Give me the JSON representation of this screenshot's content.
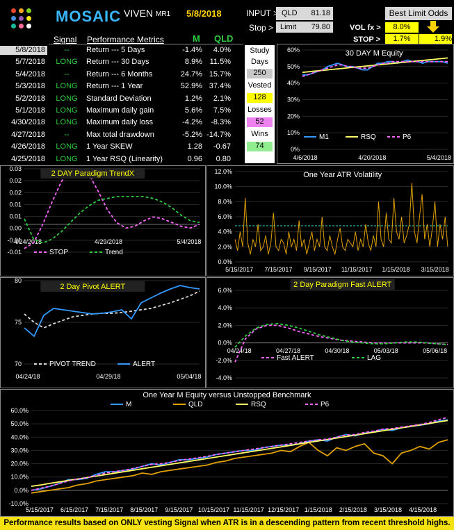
{
  "header": {
    "logo_text": "MOSAIC",
    "product": "VIVEN",
    "product_sup": "MR1",
    "date": "5/8/2018",
    "input_label": "INPUT >",
    "input_symbol": "QLD",
    "input_price": "81.18",
    "stop_label": "Stop >",
    "limit_label": "Limit",
    "limit_value": "79.80",
    "best_limit_label": "Best Limit Odds",
    "volfx_label": "VOL fx >",
    "volfx_value": "8.0%",
    "stop2_label": "STOP >",
    "stop2_value": "1.7%",
    "stop2_pct": "1.9%"
  },
  "table": {
    "col_signal": "Signal",
    "col_metrics": "Performance Metrics",
    "col_m": "M",
    "col_qld": "QLD",
    "rows": [
      {
        "date": "5/8/2018",
        "signal": "--",
        "metric": "Return --- 5 Days",
        "m": "-1.4%",
        "qld": "4.0%"
      },
      {
        "date": "5/7/2018",
        "signal": "LONG",
        "metric": "Return --- 30 Days",
        "m": "8.9%",
        "qld": "11.5%"
      },
      {
        "date": "5/4/2018",
        "signal": "--",
        "metric": "Return --- 6 Months",
        "m": "24.7%",
        "qld": "15.7%"
      },
      {
        "date": "5/3/2018",
        "signal": "LONG",
        "metric": "Return --- 1 Year",
        "m": "52.9%",
        "qld": "37.4%"
      },
      {
        "date": "5/2/2018",
        "signal": "LONG",
        "metric": "Standard Deviation",
        "m": "1.2%",
        "qld": "2.1%"
      },
      {
        "date": "5/1/2018",
        "signal": "LONG",
        "metric": "Maximum daily gain",
        "m": "5.6%",
        "qld": "7.5%"
      },
      {
        "date": "4/30/2018",
        "signal": "LONG",
        "metric": "Maximum daily loss",
        "m": "-4.2%",
        "qld": "-8.3%"
      },
      {
        "date": "4/27/2018",
        "signal": "--",
        "metric": "Max total drawdown",
        "m": "-5.2%",
        "qld": "-14.7%"
      },
      {
        "date": "4/26/2018",
        "signal": "LONG",
        "metric": "1 Year SKEW",
        "m": "1.28",
        "qld": "-0.67"
      },
      {
        "date": "4/25/2018",
        "signal": "LONG",
        "metric": "1 Year RSQ  (Linearity)",
        "m": "0.96",
        "qld": "0.80"
      }
    ]
  },
  "study": {
    "study_label": "Study",
    "days_label": "Days",
    "days_value": "250",
    "vested_label": "Vested",
    "vested_value": "128",
    "losses_label": "Losses",
    "losses_value": "52",
    "wins_label": "Wins",
    "wins_value": "74"
  },
  "footer": {
    "text": "Performance results based on ONLY vesting Signal when ATR is in a descending pattern from recent threshold highs."
  },
  "colors": {
    "green": "#2ecc40",
    "yellow": "#ffff00",
    "pink": "#ff66ff",
    "blue": "#3399ff",
    "orange": "#e0a000",
    "lightgreen": "#90ee90"
  },
  "chart_data": [
    {
      "id": "equity30",
      "type": "line",
      "title": "30 DAY  M   Equity",
      "x_ticks": [
        "4/6/2018",
        "4/20/2018",
        "5/4/2018"
      ],
      "y_ticks": [
        "0%",
        "10%",
        "20%",
        "30%",
        "40%",
        "50%",
        "60%"
      ],
      "ylim": [
        0,
        60
      ],
      "series": [
        {
          "name": "M1",
          "color": "#3399ff",
          "values": [
            45,
            45,
            46,
            47,
            48,
            50,
            51,
            52,
            51,
            50,
            50,
            49,
            48,
            48,
            50,
            52,
            52,
            53,
            53,
            52,
            53,
            54,
            53,
            53,
            52,
            53,
            53,
            53,
            53,
            52
          ]
        },
        {
          "name": "RSQ",
          "color": "#ffff66",
          "values": [
            46.5,
            46.8,
            47.1,
            47.4,
            47.7,
            48.0,
            48.3,
            48.6,
            48.9,
            49.2,
            49.5,
            49.8,
            50.1,
            50.4,
            50.7,
            51.0,
            51.3,
            51.6,
            51.9,
            52.2,
            52.5,
            52.8,
            53.1,
            53.4,
            53.7,
            54.0,
            54.3,
            54.6,
            54.9,
            55.2
          ]
        },
        {
          "name": "P6",
          "color": "#ff66ff",
          "values": [
            44,
            45,
            46,
            47,
            48,
            49,
            50,
            51,
            51,
            50,
            50,
            49,
            49,
            49,
            50,
            51,
            52,
            52,
            53,
            53,
            53,
            53,
            53,
            53,
            53,
            53,
            53,
            53,
            53,
            53
          ]
        }
      ]
    },
    {
      "id": "trendx",
      "type": "line",
      "title": "2  DAY  Paradigm  TrendX",
      "x_ticks": [
        "4/24/2018",
        "4/29/2018",
        "5/4/2018"
      ],
      "y_ticks": [
        "-0.01",
        "-0.01",
        "0.00",
        "0.01",
        "0.01",
        "0.02",
        "0.02",
        "0.03"
      ],
      "ylim": [
        -0.015,
        0.03
      ],
      "series": [
        {
          "name": "STOP",
          "color": "#ff66ff",
          "values": [
            -0.013,
            -0.01,
            0.0,
            0.012,
            0.023,
            0.03,
            0.03,
            0.027,
            0.018,
            0.008,
            0.001,
            -0.002,
            -0.001,
            0.002,
            0.004,
            0.003,
            0.001,
            -0.001,
            -0.002,
            0.0
          ]
        },
        {
          "name": "Trend",
          "color": "#2ecc40",
          "values": [
            0.003,
            -0.008,
            -0.01,
            -0.008,
            -0.004,
            0.001,
            0.006,
            0.01,
            0.013,
            0.014,
            0.015,
            0.015,
            0.015,
            0.015,
            0.014,
            0.012,
            0.009,
            0.005,
            0.002,
            0.001
          ]
        }
      ]
    },
    {
      "id": "atr",
      "type": "line",
      "title": "One Year  ATR Volatility",
      "x_ticks": [
        "5/15/2017",
        "7/15/2017",
        "9/15/2017",
        "11/15/2017",
        "1/15/2018",
        "3/15/2018"
      ],
      "y_ticks": [
        "0.0%",
        "2.0%",
        "4.0%",
        "6.0%",
        "8.0%",
        "10.0%",
        "12.0%"
      ],
      "ylim": [
        0,
        12
      ],
      "threshold": 4.8,
      "series": [
        {
          "name": "ATR",
          "color": "#e0a000",
          "values": [
            3.0,
            1.5,
            4.0,
            2.0,
            8.5,
            2.5,
            1.0,
            3.0,
            2.0,
            5.0,
            1.5,
            2.0,
            3.5,
            1.0,
            2.5,
            6.5,
            2.0,
            1.5,
            3.0,
            2.5,
            1.0,
            4.0,
            2.0,
            3.0,
            1.5,
            5.5,
            2.0,
            3.0,
            1.0,
            2.5,
            4.0,
            1.5,
            3.0,
            2.0,
            6.0,
            2.0,
            1.5,
            3.5,
            2.0,
            1.0,
            3.0,
            4.5,
            2.0,
            1.5,
            3.0,
            2.5,
            2.0,
            4.0,
            1.5,
            3.0,
            2.0,
            5.0,
            2.5,
            1.5,
            3.5,
            2.0,
            8.0,
            3.0,
            2.0,
            6.5,
            3.0,
            2.5,
            8.5,
            4.0,
            3.0,
            6.0,
            2.5,
            3.5,
            5.0,
            10.5,
            4.0,
            2.5,
            6.0,
            9.0,
            3.0,
            5.0,
            2.0,
            4.5,
            8.0,
            2.0,
            5.0,
            3.0,
            6.0,
            2.0
          ]
        }
      ]
    },
    {
      "id": "pivot",
      "type": "line",
      "title": "2 Day Pivot  ALERT",
      "x_ticks": [
        "04/24/18",
        "04/29/18",
        "05/04/18"
      ],
      "y_ticks": [
        "70",
        "75",
        "80"
      ],
      "ylim": [
        70,
        82
      ],
      "series": [
        {
          "name": "PIVOT  TREND",
          "color": "#dddddd",
          "values": [
            77.2,
            76.0,
            75.2,
            75.8,
            76.3,
            76.8,
            77.0,
            77.2,
            77.3,
            77.3,
            77.4,
            77.6,
            77.8,
            78.0,
            78.4,
            78.8,
            79.3,
            79.8,
            80.5
          ]
        },
        {
          "name": "ALERT",
          "color": "#3399ff",
          "values": [
            75.2,
            74.0,
            77.0,
            78.0,
            77.8,
            77.6,
            77.4,
            77.2,
            77.3,
            77.5,
            77.8,
            76.5,
            78.8,
            79.5,
            80.2,
            80.8,
            81.3,
            81.0,
            80.8
          ]
        }
      ]
    },
    {
      "id": "fastalert",
      "type": "line",
      "title": "2 Day  Paradigm Fast  ALERT",
      "x_ticks": [
        "04/24/18",
        "04/27/18",
        "04/30/18",
        "05/03/18",
        "05/06/18"
      ],
      "y_ticks": [
        "-4.0%",
        "-2.0%",
        "0.0%",
        "2.0%",
        "4.0%",
        "6.0%"
      ],
      "ylim": [
        -4,
        6
      ],
      "series": [
        {
          "name": "Fast ALERT",
          "color": "#ff66ff",
          "values": [
            -2.2,
            0.5,
            1.6,
            2.0,
            2.0,
            1.7,
            1.3,
            1.0,
            0.7,
            0.5,
            0.3,
            0.2,
            0.1,
            0.0,
            0.0,
            0.0,
            0.0,
            0.0,
            0.0,
            -0.1,
            -0.2
          ]
        },
        {
          "name": "LAG",
          "color": "#2ecc40",
          "values": [
            -0.5,
            0.8,
            1.7,
            2.1,
            2.2,
            2.0,
            1.7,
            1.3,
            0.9,
            0.6,
            0.3,
            0.1,
            0.0,
            -0.1,
            -0.1,
            0.0,
            0.1,
            0.1,
            0.0,
            -0.1,
            -0.2
          ]
        }
      ]
    },
    {
      "id": "yearequity",
      "type": "line",
      "title": "One Year  M   Equity versus  Unstopped Benchmark",
      "x_ticks": [
        "5/15/2017",
        "6/15/2017",
        "7/15/2017",
        "8/15/2017",
        "9/15/2017",
        "10/15/2017",
        "11/15/2017",
        "12/15/2017",
        "1/15/2018",
        "2/15/2018",
        "3/15/2018",
        "4/15/2018"
      ],
      "y_ticks": [
        "-10.0%",
        "0.0%",
        "10.0%",
        "20.0%",
        "30.0%",
        "40.0%",
        "50.0%",
        "60.0%"
      ],
      "ylim": [
        -10,
        60
      ],
      "series": [
        {
          "name": "M",
          "color": "#3399ff",
          "values": [
            0,
            1,
            3,
            5,
            8,
            8,
            9,
            12,
            14,
            14,
            15,
            16,
            18,
            20,
            19,
            21,
            23,
            23,
            24,
            25,
            27,
            28,
            29,
            30,
            30,
            32,
            33,
            34,
            34,
            35,
            37,
            38,
            37,
            40,
            42,
            41,
            43,
            44,
            46,
            45,
            47,
            48,
            49,
            50,
            52,
            53
          ]
        },
        {
          "name": "QLD",
          "color": "#e0a000",
          "values": [
            -2,
            -1,
            0,
            1,
            2,
            4,
            5,
            7,
            8,
            9,
            10,
            11,
            13,
            12,
            14,
            15,
            16,
            17,
            18,
            19,
            21,
            22,
            24,
            25,
            26,
            27,
            28,
            30,
            29,
            33,
            36,
            30,
            26,
            32,
            30,
            33,
            35,
            28,
            26,
            20,
            28,
            30,
            33,
            31,
            36,
            38
          ]
        },
        {
          "name": "RSQ",
          "color": "#ffff66",
          "values": [
            3,
            4,
            5.2,
            6.3,
            7.4,
            8.5,
            9.6,
            10.7,
            11.8,
            12.9,
            14,
            15.1,
            16.2,
            17.3,
            18.4,
            19.5,
            20.6,
            21.7,
            22.8,
            23.9,
            25,
            26.1,
            27.2,
            28.3,
            29.4,
            30.5,
            31.6,
            32.7,
            33.8,
            34.9,
            36,
            37.1,
            38.2,
            39.3,
            40.4,
            41.5,
            42.6,
            43.7,
            44.8,
            45.9,
            47,
            48.1,
            49.2,
            50.3,
            51.4,
            52.5
          ]
        },
        {
          "name": "P6",
          "color": "#ff66ff",
          "values": [
            0,
            1.5,
            3,
            5,
            7,
            8.5,
            9.5,
            11,
            13,
            14,
            15,
            16.5,
            18,
            19.5,
            20,
            21,
            22.5,
            23.5,
            24.5,
            25.5,
            27,
            28,
            29,
            30,
            31,
            32,
            33,
            34,
            35,
            36,
            37,
            38,
            38.5,
            40,
            41.5,
            42,
            43.5,
            44.5,
            46,
            46.5,
            47.5,
            48.5,
            49.5,
            51,
            53,
            55
          ]
        }
      ]
    }
  ]
}
